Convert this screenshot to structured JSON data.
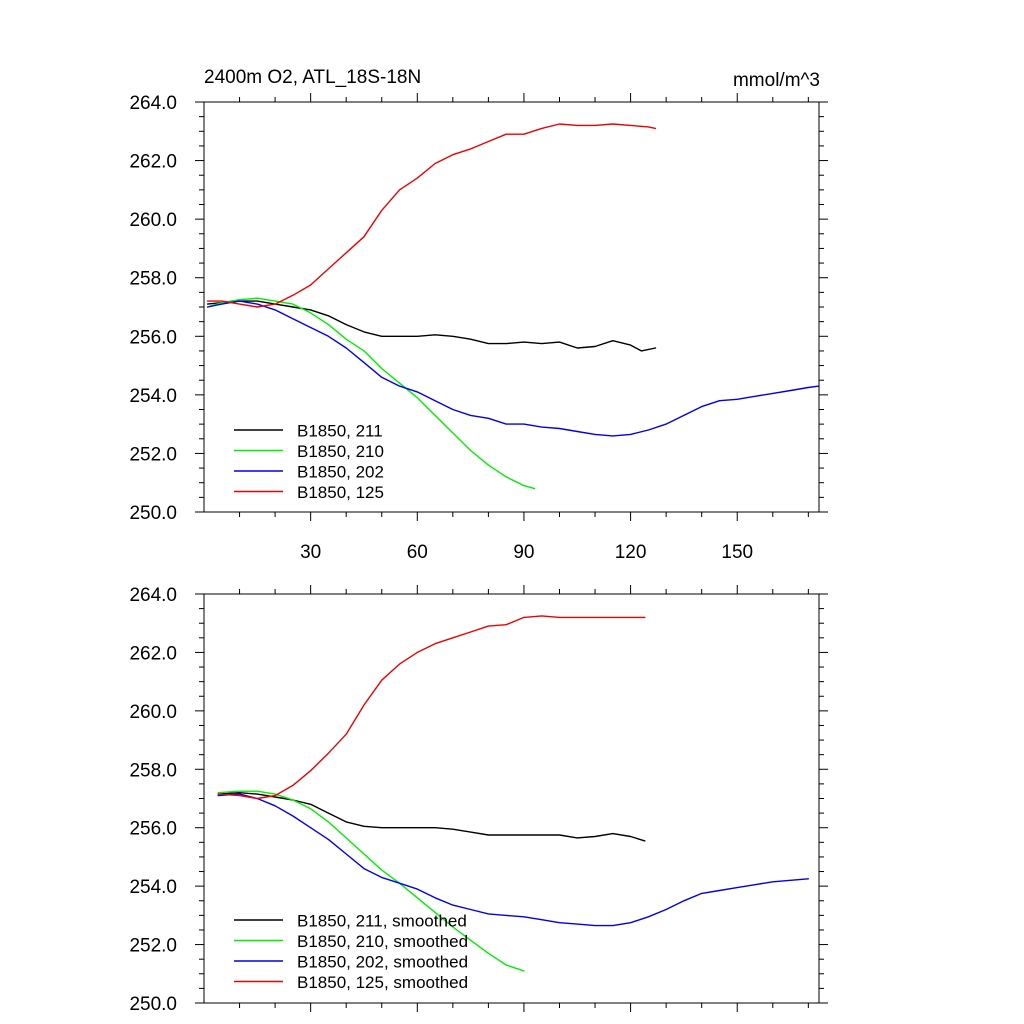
{
  "chart_data": [
    {
      "type": "line",
      "title": "2400m O2, ATL_18S-18N",
      "units": "mmol/m^3",
      "xlabel": "",
      "ylabel": "",
      "xlim": [
        0,
        173
      ],
      "ylim": [
        250.0,
        264.0
      ],
      "y_ticks": [
        "250.0",
        "252.0",
        "254.0",
        "256.0",
        "258.0",
        "260.0",
        "262.0",
        "264.0"
      ],
      "x_ticks": [
        "30",
        "60",
        "90",
        "120",
        "150"
      ],
      "x_tick_values": [
        30,
        60,
        90,
        120,
        150
      ],
      "show_x_tick_labels": true,
      "grid": false,
      "legend_placement": "bottom-left",
      "series": [
        {
          "name": "B1850, 211",
          "color": "#000000",
          "x": [
            1,
            5,
            10,
            15,
            20,
            25,
            30,
            35,
            40,
            45,
            50,
            55,
            60,
            65,
            70,
            75,
            80,
            85,
            90,
            95,
            100,
            105,
            110,
            115,
            120,
            123,
            127
          ],
          "y": [
            257.1,
            257.15,
            257.2,
            257.2,
            257.1,
            257.0,
            256.9,
            256.7,
            256.4,
            256.15,
            256.0,
            256.0,
            256.0,
            256.05,
            256.0,
            255.9,
            255.75,
            255.75,
            255.8,
            255.75,
            255.8,
            255.6,
            255.65,
            255.85,
            255.7,
            255.5,
            255.6
          ]
        },
        {
          "name": "B1850, 210",
          "color": "#00ee00",
          "x": [
            1,
            5,
            10,
            15,
            20,
            25,
            30,
            35,
            40,
            45,
            50,
            55,
            60,
            65,
            70,
            75,
            80,
            85,
            90,
            93
          ],
          "y": [
            257.0,
            257.15,
            257.25,
            257.3,
            257.2,
            257.1,
            256.8,
            256.4,
            255.9,
            255.5,
            254.9,
            254.4,
            253.9,
            253.3,
            252.7,
            252.1,
            251.6,
            251.2,
            250.9,
            250.8
          ]
        },
        {
          "name": "B1850, 202",
          "color": "#0000ee",
          "x": [
            1,
            5,
            10,
            15,
            20,
            25,
            30,
            35,
            40,
            45,
            50,
            55,
            60,
            65,
            70,
            75,
            80,
            85,
            90,
            95,
            100,
            105,
            110,
            115,
            120,
            125,
            130,
            135,
            140,
            145,
            150,
            155,
            160,
            165,
            170,
            173
          ],
          "y": [
            257.0,
            257.1,
            257.2,
            257.1,
            256.9,
            256.6,
            256.3,
            256.0,
            255.6,
            255.1,
            254.6,
            254.3,
            254.1,
            253.8,
            253.5,
            253.3,
            253.2,
            253.0,
            253.0,
            252.9,
            252.85,
            252.75,
            252.65,
            252.6,
            252.65,
            252.8,
            253.0,
            253.3,
            253.6,
            253.8,
            253.85,
            253.95,
            254.05,
            254.15,
            254.25,
            254.3
          ]
        },
        {
          "name": "B1850, 125",
          "color": "#ee0000",
          "x": [
            1,
            5,
            10,
            15,
            20,
            25,
            30,
            35,
            40,
            45,
            50,
            55,
            60,
            65,
            70,
            75,
            80,
            85,
            90,
            95,
            100,
            105,
            110,
            115,
            120,
            125,
            127
          ],
          "y": [
            257.2,
            257.2,
            257.1,
            257.0,
            257.1,
            257.4,
            257.75,
            258.3,
            258.85,
            259.4,
            260.3,
            261.0,
            261.4,
            261.9,
            262.2,
            262.4,
            262.65,
            262.9,
            262.9,
            263.1,
            263.25,
            263.2,
            263.2,
            263.25,
            263.2,
            263.15,
            263.1
          ]
        }
      ]
    },
    {
      "type": "line",
      "title": "",
      "xlabel": "",
      "ylabel": "",
      "xlim": [
        0,
        173
      ],
      "ylim": [
        250.0,
        264.0
      ],
      "y_ticks": [
        "250.0",
        "252.0",
        "254.0",
        "256.0",
        "258.0",
        "260.0",
        "262.0",
        "264.0"
      ],
      "x_tick_values": [
        30,
        60,
        90,
        120,
        150
      ],
      "show_x_tick_labels": false,
      "grid": false,
      "legend_placement": "bottom-left",
      "series": [
        {
          "name": "B1850, 211, smoothed",
          "color": "#000000",
          "x": [
            4,
            10,
            15,
            20,
            25,
            30,
            35,
            40,
            45,
            50,
            55,
            60,
            65,
            70,
            75,
            80,
            85,
            90,
            95,
            100,
            105,
            110,
            115,
            120,
            124
          ],
          "y": [
            257.15,
            257.2,
            257.15,
            257.05,
            256.95,
            256.8,
            256.5,
            256.2,
            256.05,
            256.0,
            256.0,
            256.0,
            256.0,
            255.95,
            255.85,
            255.75,
            255.75,
            255.75,
            255.75,
            255.75,
            255.65,
            255.7,
            255.8,
            255.7,
            255.55
          ]
        },
        {
          "name": "B1850, 210, smoothed",
          "color": "#00ee00",
          "x": [
            4,
            10,
            15,
            20,
            25,
            30,
            35,
            40,
            45,
            50,
            55,
            60,
            65,
            70,
            75,
            80,
            85,
            90
          ],
          "y": [
            257.2,
            257.25,
            257.25,
            257.15,
            256.95,
            256.65,
            256.2,
            255.65,
            255.1,
            254.55,
            254.1,
            253.6,
            253.1,
            252.6,
            252.15,
            251.7,
            251.3,
            251.1
          ]
        },
        {
          "name": "B1850, 202, smoothed",
          "color": "#0000ee",
          "x": [
            4,
            10,
            15,
            20,
            25,
            30,
            35,
            40,
            45,
            50,
            55,
            60,
            65,
            70,
            75,
            80,
            85,
            90,
            95,
            100,
            105,
            110,
            115,
            120,
            125,
            130,
            135,
            140,
            145,
            150,
            155,
            160,
            165,
            170
          ],
          "y": [
            257.1,
            257.15,
            257.0,
            256.75,
            256.4,
            256.0,
            255.6,
            255.1,
            254.6,
            254.3,
            254.1,
            253.9,
            253.6,
            253.35,
            253.2,
            253.05,
            253.0,
            252.95,
            252.85,
            252.75,
            252.7,
            252.65,
            252.65,
            252.75,
            252.95,
            253.2,
            253.5,
            253.75,
            253.85,
            253.95,
            254.05,
            254.15,
            254.2,
            254.25
          ]
        },
        {
          "name": "B1850, 125, smoothed",
          "color": "#ee0000",
          "x": [
            4,
            10,
            15,
            20,
            25,
            30,
            35,
            40,
            45,
            50,
            55,
            60,
            65,
            70,
            75,
            80,
            85,
            90,
            95,
            100,
            105,
            110,
            115,
            120,
            124
          ],
          "y": [
            257.15,
            257.1,
            257.0,
            257.1,
            257.45,
            257.95,
            258.55,
            259.2,
            260.2,
            261.05,
            261.6,
            262.0,
            262.3,
            262.5,
            262.7,
            262.9,
            262.95,
            263.2,
            263.25,
            263.2,
            263.2,
            263.2,
            263.2,
            263.2,
            263.2
          ]
        }
      ]
    }
  ]
}
